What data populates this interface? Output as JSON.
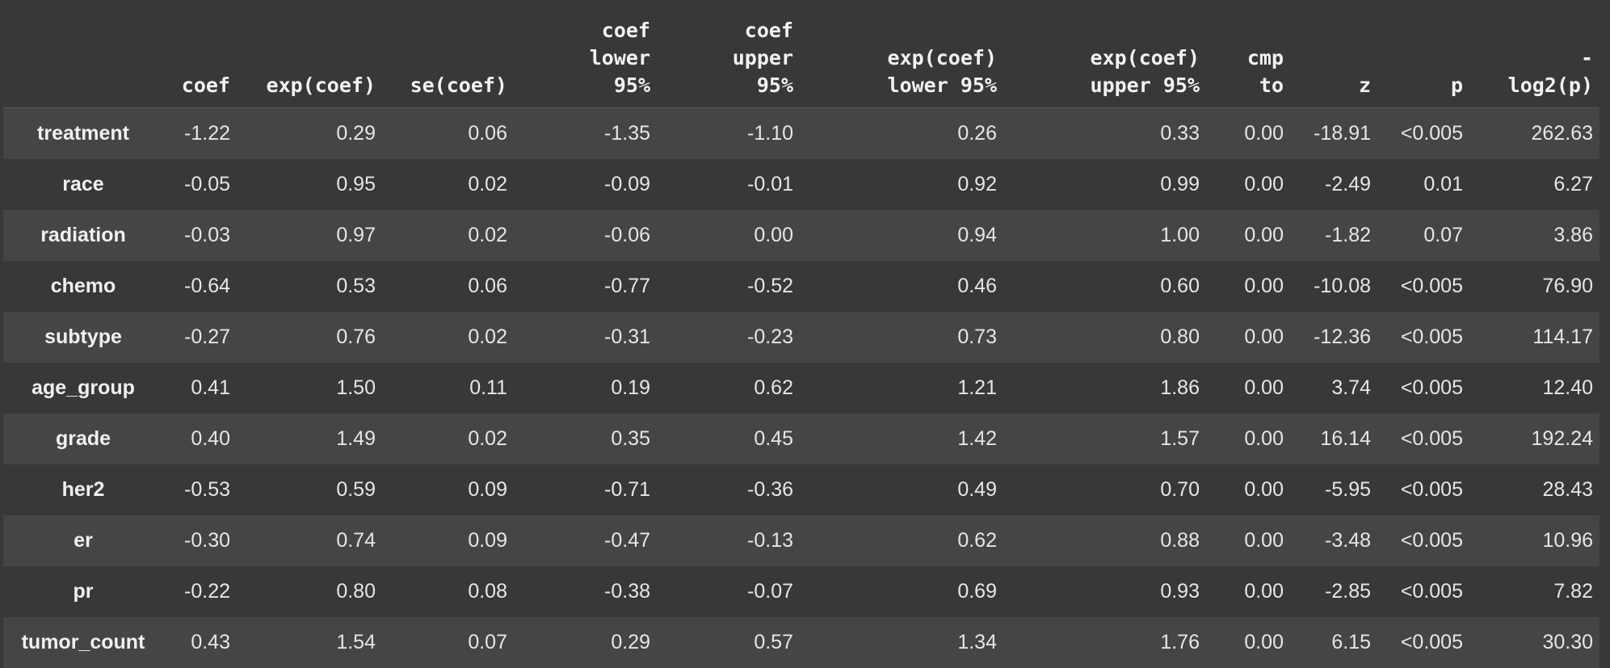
{
  "table": {
    "columns": [
      "",
      "coef",
      "exp(coef)",
      "se(coef)",
      "coef\nlower\n95%",
      "coef\nupper\n95%",
      "exp(coef)\nlower 95%",
      "exp(coef)\nupper 95%",
      "cmp\nto",
      "z",
      "p",
      "-\nlog2(p)"
    ],
    "rows": [
      [
        "treatment",
        "-1.22",
        "0.29",
        "0.06",
        "-1.35",
        "-1.10",
        "0.26",
        "0.33",
        "0.00",
        "-18.91",
        "<0.005",
        "262.63"
      ],
      [
        "race",
        "-0.05",
        "0.95",
        "0.02",
        "-0.09",
        "-0.01",
        "0.92",
        "0.99",
        "0.00",
        "-2.49",
        "0.01",
        "6.27"
      ],
      [
        "radiation",
        "-0.03",
        "0.97",
        "0.02",
        "-0.06",
        "0.00",
        "0.94",
        "1.00",
        "0.00",
        "-1.82",
        "0.07",
        "3.86"
      ],
      [
        "chemo",
        "-0.64",
        "0.53",
        "0.06",
        "-0.77",
        "-0.52",
        "0.46",
        "0.60",
        "0.00",
        "-10.08",
        "<0.005",
        "76.90"
      ],
      [
        "subtype",
        "-0.27",
        "0.76",
        "0.02",
        "-0.31",
        "-0.23",
        "0.73",
        "0.80",
        "0.00",
        "-12.36",
        "<0.005",
        "114.17"
      ],
      [
        "age_group",
        "0.41",
        "1.50",
        "0.11",
        "0.19",
        "0.62",
        "1.21",
        "1.86",
        "0.00",
        "3.74",
        "<0.005",
        "12.40"
      ],
      [
        "grade",
        "0.40",
        "1.49",
        "0.02",
        "0.35",
        "0.45",
        "1.42",
        "1.57",
        "0.00",
        "16.14",
        "<0.005",
        "192.24"
      ],
      [
        "her2",
        "-0.53",
        "0.59",
        "0.09",
        "-0.71",
        "-0.36",
        "0.49",
        "0.70",
        "0.00",
        "-5.95",
        "<0.005",
        "28.43"
      ],
      [
        "er",
        "-0.30",
        "0.74",
        "0.09",
        "-0.47",
        "-0.13",
        "0.62",
        "0.88",
        "0.00",
        "-3.48",
        "<0.005",
        "10.96"
      ],
      [
        "pr",
        "-0.22",
        "0.80",
        "0.08",
        "-0.38",
        "-0.07",
        "0.69",
        "0.93",
        "0.00",
        "-2.85",
        "<0.005",
        "7.82"
      ],
      [
        "tumor_count",
        "0.43",
        "1.54",
        "0.07",
        "0.29",
        "0.57",
        "1.34",
        "1.76",
        "0.00",
        "6.15",
        "<0.005",
        "30.30"
      ]
    ]
  },
  "colors": {
    "background": "#383838",
    "row_alt": "#454545",
    "text": "#e6e6e6"
  }
}
